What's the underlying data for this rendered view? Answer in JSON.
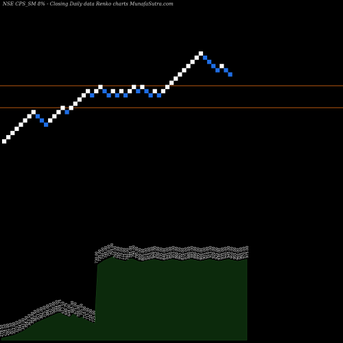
{
  "chart_data": {
    "type": "renko",
    "title": "NSE CPS_SM 8% - Closing Daily data Renko charts MunafaSutra.com",
    "colors": {
      "up": "#ffffff",
      "down": "#1e6ee6",
      "line": "#b8590f",
      "volume": "#0c2a0c",
      "background": "#000000"
    },
    "horizontal_lines_y": [
      125,
      157
    ],
    "bricks": [
      {
        "dir": "up",
        "row": 0
      },
      {
        "dir": "up",
        "row": 1
      },
      {
        "dir": "up",
        "row": 2
      },
      {
        "dir": "up",
        "row": 3
      },
      {
        "dir": "up",
        "row": 4
      },
      {
        "dir": "up",
        "row": 5
      },
      {
        "dir": "up",
        "row": 6
      },
      {
        "dir": "up",
        "row": 7
      },
      {
        "dir": "down",
        "row": 6
      },
      {
        "dir": "down",
        "row": 5
      },
      {
        "dir": "down",
        "row": 4
      },
      {
        "dir": "up",
        "row": 5
      },
      {
        "dir": "up",
        "row": 6
      },
      {
        "dir": "up",
        "row": 7
      },
      {
        "dir": "up",
        "row": 8
      },
      {
        "dir": "down",
        "row": 7
      },
      {
        "dir": "up",
        "row": 8
      },
      {
        "dir": "up",
        "row": 9
      },
      {
        "dir": "up",
        "row": 10
      },
      {
        "dir": "up",
        "row": 11
      },
      {
        "dir": "up",
        "row": 12
      },
      {
        "dir": "down",
        "row": 11
      },
      {
        "dir": "up",
        "row": 12
      },
      {
        "dir": "up",
        "row": 13
      },
      {
        "dir": "down",
        "row": 12
      },
      {
        "dir": "down",
        "row": 11
      },
      {
        "dir": "up",
        "row": 12
      },
      {
        "dir": "down",
        "row": 11
      },
      {
        "dir": "up",
        "row": 12
      },
      {
        "dir": "down",
        "row": 11
      },
      {
        "dir": "up",
        "row": 12
      },
      {
        "dir": "up",
        "row": 13
      },
      {
        "dir": "down",
        "row": 12
      },
      {
        "dir": "up",
        "row": 13
      },
      {
        "dir": "down",
        "row": 12
      },
      {
        "dir": "down",
        "row": 11
      },
      {
        "dir": "up",
        "row": 12
      },
      {
        "dir": "down",
        "row": 11
      },
      {
        "dir": "up",
        "row": 12
      },
      {
        "dir": "up",
        "row": 13
      },
      {
        "dir": "up",
        "row": 14
      },
      {
        "dir": "up",
        "row": 15
      },
      {
        "dir": "up",
        "row": 16
      },
      {
        "dir": "up",
        "row": 17
      },
      {
        "dir": "up",
        "row": 18
      },
      {
        "dir": "up",
        "row": 19
      },
      {
        "dir": "up",
        "row": 20
      },
      {
        "dir": "up",
        "row": 21
      },
      {
        "dir": "down",
        "row": 20
      },
      {
        "dir": "down",
        "row": 19
      },
      {
        "dir": "down",
        "row": 18
      },
      {
        "dir": "down",
        "row": 17
      },
      {
        "dir": "up",
        "row": 18
      },
      {
        "dir": "down",
        "row": 17
      },
      {
        "dir": "down",
        "row": 16
      }
    ],
    "price_labels": [
      "279.50",
      "278.50",
      "291.00",
      "301.50",
      "312.00",
      "323.50",
      "334.50",
      "343.00",
      "358.50",
      "363.50",
      "359.00",
      "361.50",
      "353.00",
      "362.00",
      "375.00",
      "386.00",
      "542.50",
      "560.00",
      "588.00",
      "609.75",
      "612.50",
      "640.75",
      "648.00",
      "665.00",
      "675.00",
      "700.00",
      "705.00",
      "710.00",
      "715.00",
      "720.00",
      "725.00",
      "730.00",
      "735.00",
      "740.00",
      "745.00",
      "750.00",
      "755.00",
      "760.00",
      "765.00",
      "770.00",
      "775.00",
      "780.00",
      "785.00",
      "790.00",
      "795.00",
      "800.00",
      "805.00",
      "810.00",
      "815.00",
      "820.00",
      "825.00",
      "830.00",
      "835.00",
      "840.00",
      "845.00",
      "850.00",
      "855.00",
      "860.00",
      "865.00",
      "870.00",
      "875.00",
      "880.00",
      "885.00",
      "890.00",
      "895.00",
      "900.00",
      "905.00",
      "910.00",
      "915.00",
      "920.00",
      "925.00",
      "930.00",
      "935.00",
      "940.00",
      "945.00",
      "950.00",
      "955.00",
      "960.00",
      "965.00",
      "970.00",
      "975.00"
    ],
    "volume_profile": [
      3,
      4,
      5,
      6,
      7,
      9,
      11,
      13,
      16,
      19,
      22,
      25,
      27,
      29,
      31,
      33,
      35,
      37,
      39,
      40,
      37,
      35,
      33,
      38,
      36,
      32,
      34,
      30,
      28,
      26,
      24,
      110,
      113,
      116,
      118,
      120,
      122,
      118,
      117,
      116,
      115,
      118,
      119,
      117,
      115,
      114,
      115,
      116,
      117,
      118,
      117,
      116,
      115,
      116,
      117,
      118,
      117,
      116,
      115,
      116,
      117,
      118,
      117,
      116,
      115,
      116,
      117,
      118,
      117,
      116,
      115,
      116,
      117,
      118,
      117,
      116,
      115,
      116,
      117,
      118
    ]
  }
}
